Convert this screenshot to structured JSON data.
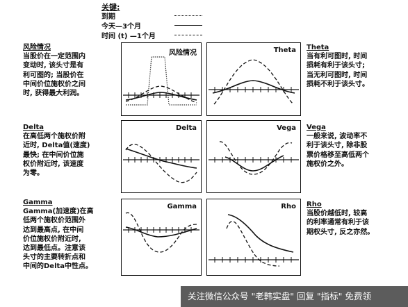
{
  "legend": {
    "title": "关键:",
    "items": [
      {
        "label": "到期",
        "style": "dotted"
      },
      {
        "label": "今天—3个月",
        "style": "solid"
      },
      {
        "label": "时间 (t) —1个月",
        "style": "dashed"
      }
    ]
  },
  "left_notes": [
    {
      "title": "风险情况",
      "body": [
        "当股价在一定范围内",
        "变动时, 该头寸是有",
        "利可图的; 当股价在",
        "中间价位施权价之间",
        "时, 获得最大利润。"
      ]
    },
    {
      "title": "Delta",
      "body": [
        "在高低两个施权价附",
        "近时, Delta值(速度)",
        "最快; 在中间价位施",
        "权价附近时, 该速度",
        "为零。"
      ]
    },
    {
      "title": "Gamma",
      "body": [
        "Gamma(加速度)在高",
        "低两个施权价范围外",
        "达到最高点, 在中间",
        "价位施权价附近时,",
        "达到最低点。注意该",
        "头寸的主要转折点和",
        "中间的Delta中性点。"
      ]
    }
  ],
  "right_notes": [
    {
      "title": "Theta",
      "body": [
        "当有利可图时, 时间",
        "损耗有利于该头寸;",
        "当无利可图时, 时间",
        "损耗不利于该头寸。"
      ]
    },
    {
      "title": "Vega",
      "body": [
        "一般来说, 波动率不",
        "利于该头寸, 除非股",
        "票价格移至高低两个",
        "施权价之外。"
      ]
    },
    {
      "title": "Rho",
      "body": [
        "当股价越低时, 较高",
        "的利率通常有利于该",
        "期权头寸, 反之亦然。"
      ]
    }
  ],
  "panels": [
    {
      "name": "risk",
      "title": "风险情况"
    },
    {
      "name": "theta",
      "title": "Theta"
    },
    {
      "name": "delta",
      "title": "Delta"
    },
    {
      "name": "vega",
      "title": "Vega"
    },
    {
      "name": "gamma",
      "title": "Gamma"
    },
    {
      "name": "rho",
      "title": "Rho"
    }
  ],
  "watermark": "关注微信公众号 \"老韩实盘\" 回复 \"指标\" 免费领"
}
